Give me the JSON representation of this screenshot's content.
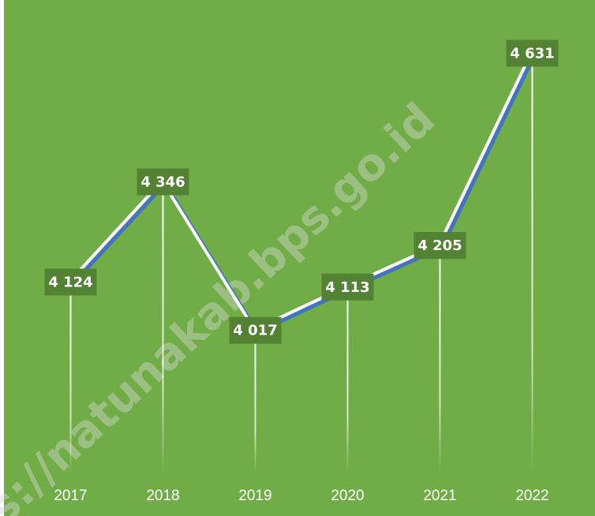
{
  "chart_data": {
    "type": "line",
    "categories": [
      "2017",
      "2018",
      "2019",
      "2020",
      "2021",
      "2022"
    ],
    "values": [
      4124,
      4346,
      4017,
      4113,
      4205,
      4631
    ],
    "value_labels": [
      "4 124",
      "4 346",
      "4 017",
      "4 113",
      "4 205",
      "4 631"
    ],
    "ylim": [
      3700,
      4700
    ],
    "color": "#4472c4",
    "line_outline": "#ffffff",
    "background": "#70ad47",
    "label_box": "#548235",
    "drop_lines": true,
    "watermark": "s://natunakab.bps.go.id"
  }
}
